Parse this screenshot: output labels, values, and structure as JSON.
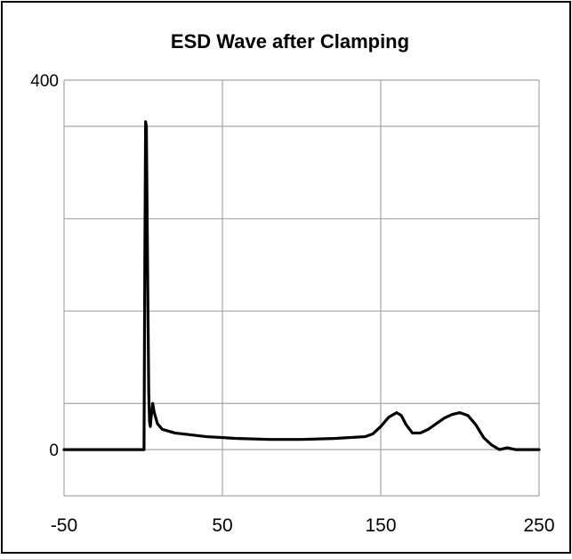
{
  "chart_data": {
    "type": "line",
    "title": "ESD Wave after Clamping",
    "xlabel": "",
    "ylabel": "",
    "xlim": [
      -50,
      250
    ],
    "ylim": [
      -50,
      400
    ],
    "x_tick_labels": [
      {
        "value": -50,
        "label": "-50"
      },
      {
        "value": 50,
        "label": "50"
      },
      {
        "value": 150,
        "label": "150"
      },
      {
        "value": 250,
        "label": "250"
      }
    ],
    "x_gridlines": [
      -50,
      50,
      150,
      250
    ],
    "y_tick_labels": [
      {
        "value": 0,
        "label": "0"
      },
      {
        "value": 400,
        "label": "400"
      }
    ],
    "y_gridlines": [
      -50,
      0,
      50,
      150,
      250,
      350,
      400
    ],
    "grid": true,
    "legend": "none",
    "line_color": "#000000",
    "grid_color": "#a6a6a6",
    "series": [
      {
        "values": [
          [
            -50,
            0
          ],
          [
            0,
            0
          ],
          [
            0.5,
            0
          ],
          [
            1,
            200
          ],
          [
            1.5,
            355
          ],
          [
            2,
            350
          ],
          [
            2.5,
            250
          ],
          [
            3,
            150
          ],
          [
            3.5,
            60
          ],
          [
            4,
            30
          ],
          [
            4.5,
            25
          ],
          [
            5,
            35
          ],
          [
            6,
            50
          ],
          [
            7,
            40
          ],
          [
            9,
            28
          ],
          [
            12,
            22
          ],
          [
            20,
            18
          ],
          [
            40,
            14
          ],
          [
            60,
            12
          ],
          [
            80,
            11
          ],
          [
            100,
            11
          ],
          [
            120,
            12
          ],
          [
            140,
            14
          ],
          [
            145,
            17
          ],
          [
            150,
            25
          ],
          [
            155,
            35
          ],
          [
            160,
            40
          ],
          [
            163,
            37
          ],
          [
            166,
            27
          ],
          [
            170,
            18
          ],
          [
            175,
            18
          ],
          [
            180,
            22
          ],
          [
            185,
            28
          ],
          [
            190,
            34
          ],
          [
            195,
            38
          ],
          [
            200,
            40
          ],
          [
            205,
            37
          ],
          [
            210,
            27
          ],
          [
            215,
            13
          ],
          [
            220,
            5
          ],
          [
            225,
            0
          ],
          [
            230,
            2
          ],
          [
            235,
            0
          ],
          [
            240,
            0
          ],
          [
            250,
            0
          ]
        ]
      }
    ]
  }
}
